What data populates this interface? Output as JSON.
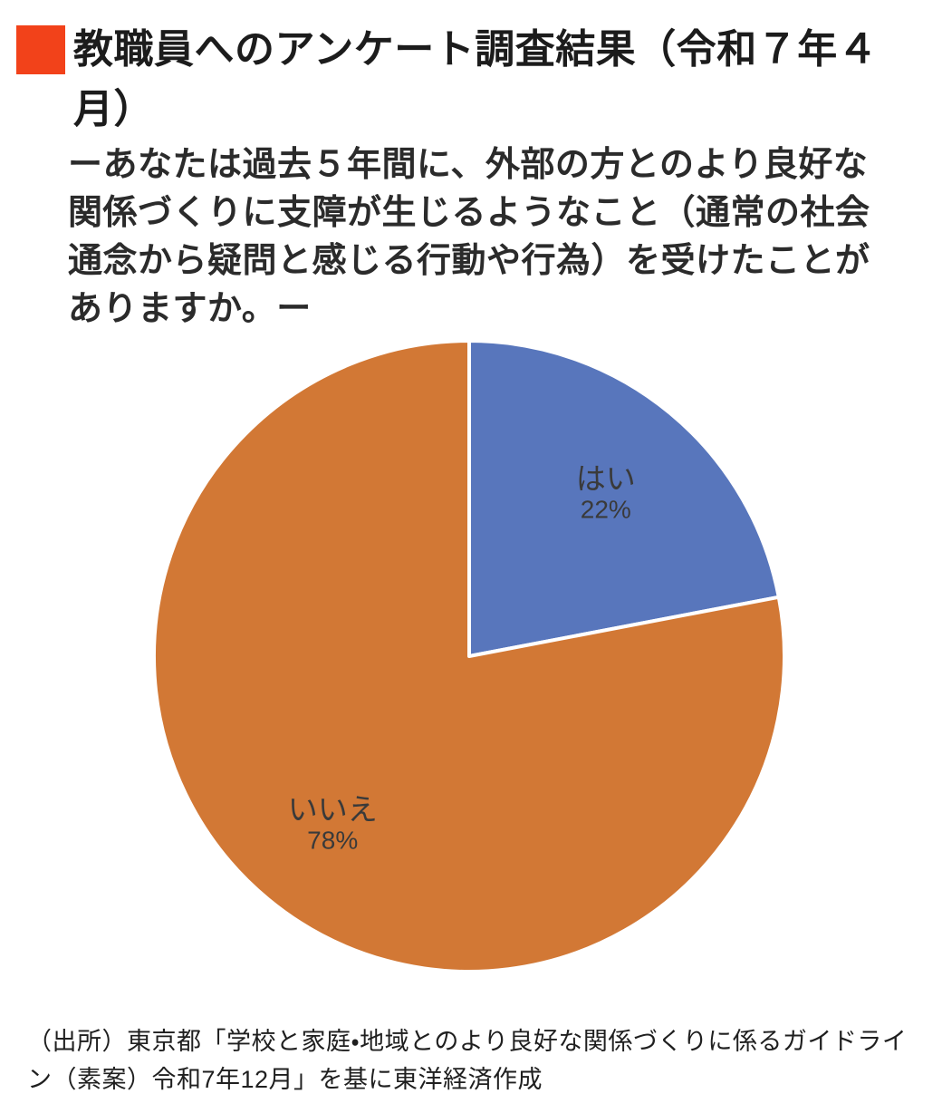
{
  "header": {
    "bullet_color": "#F2421A",
    "title_lines": [
      "教職員へのアンケート調査結果（令和７年４",
      "月）"
    ]
  },
  "question": {
    "lines": [
      "ーあなたは過去５年間に、外部の方とのより良好な",
      "関係づくりに支障が生じるようなこと（通常の社会",
      "通念から疑問と感じる行動や行為）を受けたことが",
      "ありますか。ー"
    ]
  },
  "chart_data": {
    "type": "pie",
    "title": "教職員へのアンケート調査結果（令和７年４月）",
    "question": "あなたは過去５年間に、外部の方とのより良好な関係づくりに支障が生じるようなこと（通常の社会通念から疑問と感じる行動や行為）を受けたことがありますか。",
    "slices": [
      {
        "label": "はい",
        "value": 22,
        "percent_label": "22%",
        "color": "#5876BC"
      },
      {
        "label": "いいえ",
        "value": 78,
        "percent_label": "78%",
        "color": "#D27835"
      }
    ],
    "start": "top",
    "direction": "clockwise",
    "slice_border_color": "#FFFFFF",
    "label_color": "#3A3A3A",
    "legend": "none",
    "labels_inside": true
  },
  "source": {
    "lines": [
      "（出所）東京都「学校と家庭・地域とのより良好な関係づくりに係るガイドライ",
      "ン（素案）令和7年12月」を基に東洋経済作成"
    ]
  }
}
